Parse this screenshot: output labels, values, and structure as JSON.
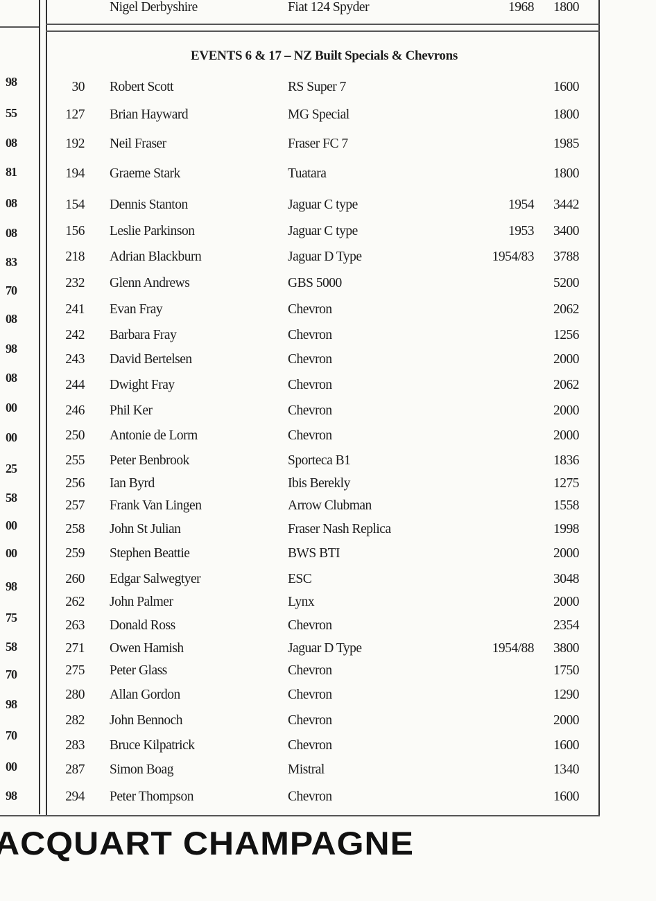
{
  "left_column_fragments": [
    "98",
    "55",
    "08",
    "81",
    "08",
    "08",
    "83",
    "70",
    "08",
    "98",
    "08",
    "00",
    "00",
    "25",
    "58",
    "00",
    "00",
    "98",
    "75",
    "58",
    "70",
    "98",
    "70",
    "00",
    "98"
  ],
  "top_entry": {
    "name": "Nigel Derbyshire",
    "car": "Fiat 124 Spyder",
    "year": "1968",
    "cc": "1800"
  },
  "section": {
    "heading": "EVENTS 6 & 17 – NZ Built Specials & Chevrons",
    "entries": [
      {
        "num": "30",
        "name": "Robert Scott",
        "car": "RS Super 7",
        "year": "",
        "cc": "1600"
      },
      {
        "num": "127",
        "name": "Brian Hayward",
        "car": "MG Special",
        "year": "",
        "cc": "1800"
      },
      {
        "num": "192",
        "name": "Neil Fraser",
        "car": "Fraser FC 7",
        "year": "",
        "cc": "1985"
      },
      {
        "num": "194",
        "name": "Graeme Stark",
        "car": "Tuatara",
        "year": "",
        "cc": "1800"
      },
      {
        "num": "154",
        "name": "Dennis Stanton",
        "car": "Jaguar C type",
        "year": "1954",
        "cc": "3442"
      },
      {
        "num": "156",
        "name": "Leslie Parkinson",
        "car": "Jaguar C type",
        "year": "1953",
        "cc": "3400"
      },
      {
        "num": "218",
        "name": "Adrian Blackburn",
        "car": "Jaguar D Type",
        "year": "1954/83",
        "cc": "3788"
      },
      {
        "num": "232",
        "name": "Glenn Andrews",
        "car": "GBS 5000",
        "year": "",
        "cc": "5200"
      },
      {
        "num": "241",
        "name": "Evan Fray",
        "car": "Chevron",
        "year": "",
        "cc": "2062"
      },
      {
        "num": "242",
        "name": "Barbara Fray",
        "car": "Chevron",
        "year": "",
        "cc": "1256"
      },
      {
        "num": "243",
        "name": "David Bertelsen",
        "car": "Chevron",
        "year": "",
        "cc": "2000"
      },
      {
        "num": "244",
        "name": "Dwight Fray",
        "car": "Chevron",
        "year": "",
        "cc": "2062"
      },
      {
        "num": "246",
        "name": "Phil Ker",
        "car": "Chevron",
        "year": "",
        "cc": "2000"
      },
      {
        "num": "250",
        "name": "Antonie de Lorm",
        "car": "Chevron",
        "year": "",
        "cc": "2000"
      },
      {
        "num": "255",
        "name": "Peter Benbrook",
        "car": "Sporteca B1",
        "year": "",
        "cc": "1836"
      },
      {
        "num": "256",
        "name": "Ian Byrd",
        "car": "Ibis Berekly",
        "year": "",
        "cc": "1275"
      },
      {
        "num": "257",
        "name": "Frank Van Lingen",
        "car": "Arrow Clubman",
        "year": "",
        "cc": "1558"
      },
      {
        "num": "258",
        "name": "John St Julian",
        "car": "Fraser Nash Replica",
        "year": "",
        "cc": "1998"
      },
      {
        "num": "259",
        "name": "Stephen Beattie",
        "car": "BWS BTI",
        "year": "",
        "cc": "2000"
      },
      {
        "num": "260",
        "name": "Edgar Salwegtyer",
        "car": "ESC",
        "year": "",
        "cc": "3048"
      },
      {
        "num": "262",
        "name": "John Palmer",
        "car": "Lynx",
        "year": "",
        "cc": "2000"
      },
      {
        "num": "263",
        "name": "Donald Ross",
        "car": "Chevron",
        "year": "",
        "cc": "2354"
      },
      {
        "num": "271",
        "name": "Owen Hamish",
        "car": "Jaguar D Type",
        "year": "1954/88",
        "cc": "3800"
      },
      {
        "num": "275",
        "name": "Peter Glass",
        "car": "Chevron",
        "year": "",
        "cc": "1750"
      },
      {
        "num": "280",
        "name": "Allan Gordon",
        "car": "Chevron",
        "year": "",
        "cc": "1290"
      },
      {
        "num": "282",
        "name": "John Bennoch",
        "car": "Chevron",
        "year": "",
        "cc": "2000"
      },
      {
        "num": "283",
        "name": "Bruce Kilpatrick",
        "car": "Chevron",
        "year": "",
        "cc": "1600"
      },
      {
        "num": "287",
        "name": "Simon Boag",
        "car": "Mistral",
        "year": "",
        "cc": "1340"
      },
      {
        "num": "294",
        "name": "Peter Thompson",
        "car": "Chevron",
        "year": "",
        "cc": "1600"
      }
    ]
  },
  "footer_banner": "ACQUART CHAMPAGNE"
}
